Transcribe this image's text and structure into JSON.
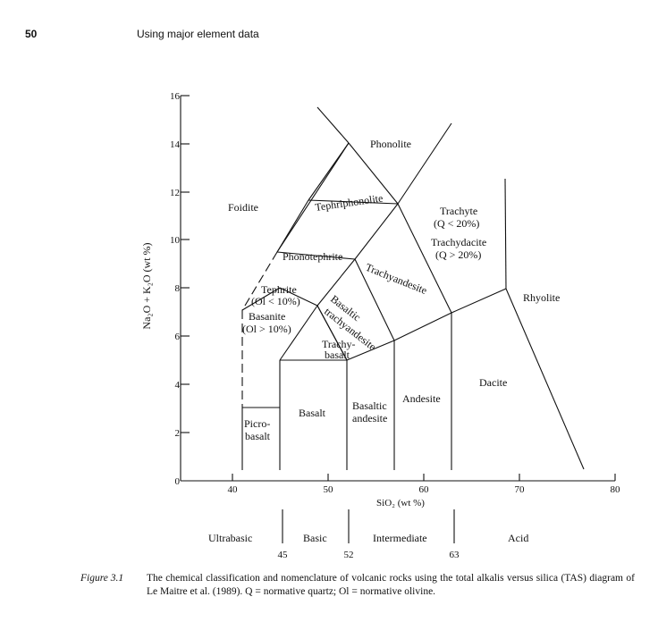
{
  "header": {
    "page_number": "50",
    "running_title": "Using major element data"
  },
  "figure": {
    "ylabel": "Na₂O + K₂O (wt %)",
    "xlabel": "SiO₂ (wt %)",
    "y_ticks": [
      "0",
      "2",
      "4",
      "6",
      "8",
      "10",
      "12",
      "14",
      "16"
    ],
    "x_ticks": [
      "40",
      "50",
      "60",
      "70",
      "80"
    ],
    "fields": {
      "phonolite": "Phonolite",
      "foidite": "Foidite",
      "tephriphonolite": "Tephriphonolite",
      "trachyte": "Trachyte",
      "trachyte_q": "(Q < 20%)",
      "trachydacite": "Trachydacite",
      "trachydacite_q": "(Q > 20%)",
      "phonotephrite": "Phonotephrite",
      "trachyandesite": "Trachyandesite",
      "rhyolite": "Rhyolite",
      "tephrite": "Tephrite",
      "tephrite_ol": "(Ol < 10%)",
      "basanite": "Basanite",
      "basanite_ol": "(Ol > 10%)",
      "basaltic": "Basaltic",
      "trachyandesite_b": "trachyandesite",
      "trachy": "Trachy-",
      "basalt_part": "basalt",
      "dacite": "Dacite",
      "andesite": "Andesite",
      "basaltic2": "Basaltic",
      "andesite2": "andesite",
      "basalt": "Basalt",
      "picro": "Picro-",
      "basalt2": "basalt"
    },
    "groups": [
      "Ultrabasic",
      "Basic",
      "Intermediate",
      "Acid"
    ],
    "group_bounds": [
      "45",
      "52",
      "63"
    ]
  },
  "caption": {
    "label": "Figure 3.1",
    "text": "The chemical classification and nomenclature of volcanic rocks using the total alkalis versus silica (TAS) diagram of Le Maitre et al. (1989). Q = normative quartz; Ol = normative olivine."
  }
}
